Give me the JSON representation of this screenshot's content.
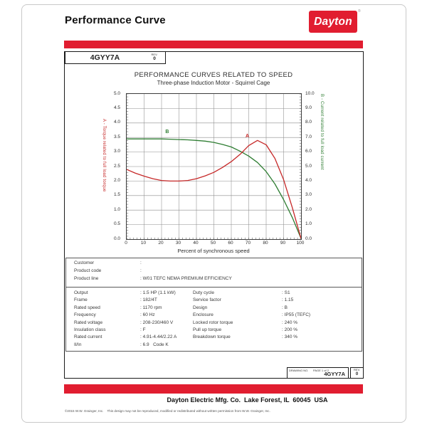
{
  "page": {
    "header_title": "Performance Curve",
    "logo_text": "Dayton",
    "logo_reg": "®",
    "model_no": "4GYY7A",
    "rev_label": "REV.",
    "rev_value": "0"
  },
  "colors": {
    "brand_red": "#e11d30",
    "curve_red": "#c62828",
    "curve_green": "#2e7d32"
  },
  "chart_data": {
    "type": "line",
    "title": "PERFORMANCE CURVES RELATED TO SPEED",
    "subtitle": "Three-phase Induction Motor - Squirrel Cage",
    "xlabel": "Percent of synchronous speed",
    "grid": true,
    "xlim": [
      0,
      100
    ],
    "x_ticks": [
      "0",
      "10",
      "20",
      "30",
      "40",
      "50",
      "60",
      "70",
      "80",
      "90",
      "100"
    ],
    "left_axis": {
      "label": "A - Torque related to full load torque",
      "lim": [
        0,
        5
      ],
      "ticks": [
        "0.0",
        "0.5",
        "1.0",
        "1.5",
        "2.0",
        "2.5",
        "3.0",
        "3.5",
        "4.0",
        "4.5",
        "5.0"
      ],
      "color": "#c62828"
    },
    "right_axis": {
      "label": "B - Current related to full load current",
      "lim": [
        0,
        10
      ],
      "ticks": [
        "0.0",
        "1.0",
        "2.0",
        "3.0",
        "4.0",
        "5.0",
        "6.0",
        "7.0",
        "8.0",
        "9.0",
        "10.0"
      ],
      "color": "#2e7d32"
    },
    "series": [
      {
        "name": "B - Current related to full load current",
        "axis": "right",
        "color": "#2e7d32",
        "marker_label": {
          "text": "B",
          "x": 23,
          "y": 7.15
        },
        "x": [
          0,
          5,
          10,
          15,
          20,
          25,
          30,
          35,
          40,
          45,
          50,
          55,
          60,
          65,
          70,
          75,
          80,
          85,
          90,
          95,
          100
        ],
        "values": [
          6.9,
          6.9,
          6.9,
          6.9,
          6.9,
          6.88,
          6.86,
          6.84,
          6.8,
          6.75,
          6.66,
          6.52,
          6.35,
          6.06,
          5.72,
          5.28,
          4.65,
          3.8,
          2.72,
          1.48,
          0.05
        ]
      },
      {
        "name": "A - Torque related to full load torque",
        "axis": "left",
        "color": "#c62828",
        "marker_label": {
          "text": "A",
          "x": 69,
          "y": 3.44
        },
        "x": [
          0,
          5,
          10,
          15,
          20,
          25,
          30,
          35,
          40,
          45,
          50,
          55,
          60,
          65,
          70,
          75,
          80,
          85,
          90,
          95,
          100
        ],
        "values": [
          2.4,
          2.27,
          2.17,
          2.08,
          2.02,
          2.0,
          2.0,
          2.02,
          2.08,
          2.18,
          2.3,
          2.47,
          2.67,
          2.92,
          3.22,
          3.4,
          3.25,
          2.78,
          2.05,
          1.08,
          0.02
        ]
      }
    ]
  },
  "info_box": {
    "rows": [
      {
        "label": "Customer",
        "value": ""
      },
      {
        "label": "Product code",
        "value": ""
      },
      {
        "label": "Product line",
        "value": "W01 TEFC NEMA PREMIUM EFFICIENCY"
      }
    ]
  },
  "specs": {
    "rows": [
      {
        "l": "Output",
        "lv": "1.5 HP (1.1 kW)",
        "r": "Duty cycle",
        "rv": "S1"
      },
      {
        "l": "Frame",
        "lv": "182/4T",
        "r": "Service factor",
        "rv": "1.15"
      },
      {
        "l": "Rated speed",
        "lv": "1170 rpm",
        "r": "Design",
        "rv": "B"
      },
      {
        "l": "Frequency",
        "lv": "60 Hz",
        "r": "Enclosure",
        "rv": "IP55 (TEFC)"
      },
      {
        "l": "Rated voltage",
        "lv": "208-230/460 V",
        "r": "Locked rotor torque",
        "rv": "240 %"
      },
      {
        "l": "Insulation class",
        "lv": "F",
        "r": "Pull up torque",
        "rv": "200 %"
      },
      {
        "l": "Rated current",
        "lv": "4.91-4.44/2.22 A",
        "r": "Breakdown torque",
        "rv": "340 %"
      },
      {
        "l": "Il/In",
        "lv": "6.9   Code K",
        "r": "",
        "rv": ""
      }
    ]
  },
  "drawing_box": {
    "drawing_no_label": "DRAWING NO.",
    "page_label": "PAGE 1 of 2",
    "drawing_no": "4GYY7A",
    "rev_label": "REV.",
    "rev_value": "0"
  },
  "footer": {
    "company_line": "Dayton Electric Mfg. Co.  Lake Forest, IL  60045  USA",
    "copyright": "©2015 W.W. Grainger, Inc.    This design may not be reproduced, modified or redistributed without written permission from W.W. Grainger, Inc."
  }
}
